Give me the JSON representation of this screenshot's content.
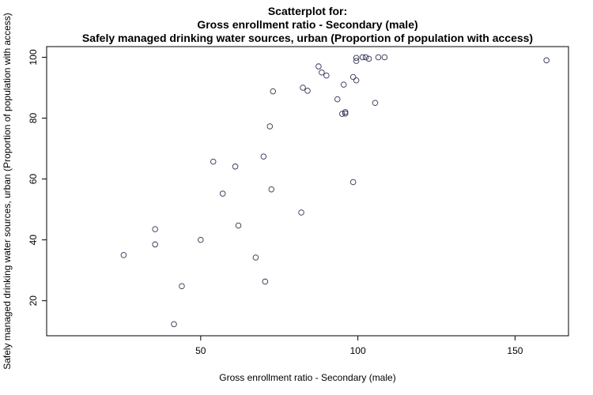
{
  "chart_data": {
    "type": "scatter",
    "title_lines": [
      "Scatterplot for:",
      "Gross enrollment ratio - Secondary (male)",
      "Safely managed drinking water sources, urban (Proportion of population with access)"
    ],
    "xlabel": "Gross enrollment ratio - Secondary (male)",
    "ylabel": "Safely managed drinking water sources, urban (Proportion of population with access)",
    "xlim": [
      1,
      167
    ],
    "ylim": [
      8.5,
      103.5
    ],
    "xticks": [
      50,
      100,
      150
    ],
    "yticks": [
      20,
      40,
      60,
      80,
      100
    ],
    "grid": false,
    "point_color": "#333355",
    "points": [
      {
        "x": 25.5,
        "y": 35
      },
      {
        "x": 35.5,
        "y": 43.5
      },
      {
        "x": 35.5,
        "y": 38.5
      },
      {
        "x": 41.5,
        "y": 12.3
      },
      {
        "x": 44,
        "y": 24.8
      },
      {
        "x": 50,
        "y": 40
      },
      {
        "x": 54,
        "y": 65.7
      },
      {
        "x": 57,
        "y": 55.2
      },
      {
        "x": 61,
        "y": 64.1
      },
      {
        "x": 62,
        "y": 44.7
      },
      {
        "x": 67.5,
        "y": 34.2
      },
      {
        "x": 70,
        "y": 67.4
      },
      {
        "x": 70.5,
        "y": 26.3
      },
      {
        "x": 72,
        "y": 77.3
      },
      {
        "x": 72.5,
        "y": 56.6
      },
      {
        "x": 73,
        "y": 88.8
      },
      {
        "x": 82,
        "y": 49
      },
      {
        "x": 82.5,
        "y": 90
      },
      {
        "x": 84,
        "y": 89
      },
      {
        "x": 87.5,
        "y": 97
      },
      {
        "x": 88.5,
        "y": 95
      },
      {
        "x": 90,
        "y": 94
      },
      {
        "x": 93.5,
        "y": 86.2
      },
      {
        "x": 95,
        "y": 81.4
      },
      {
        "x": 95.5,
        "y": 91
      },
      {
        "x": 96,
        "y": 81.5
      },
      {
        "x": 96,
        "y": 82
      },
      {
        "x": 98.5,
        "y": 59
      },
      {
        "x": 98.5,
        "y": 93.5
      },
      {
        "x": 99.5,
        "y": 92.4
      },
      {
        "x": 99.5,
        "y": 98.8
      },
      {
        "x": 99.5,
        "y": 99.8
      },
      {
        "x": 101.5,
        "y": 100
      },
      {
        "x": 102.5,
        "y": 100
      },
      {
        "x": 103.5,
        "y": 99.5
      },
      {
        "x": 105.5,
        "y": 85
      },
      {
        "x": 106.5,
        "y": 100
      },
      {
        "x": 108.5,
        "y": 100
      },
      {
        "x": 160,
        "y": 99
      }
    ]
  }
}
